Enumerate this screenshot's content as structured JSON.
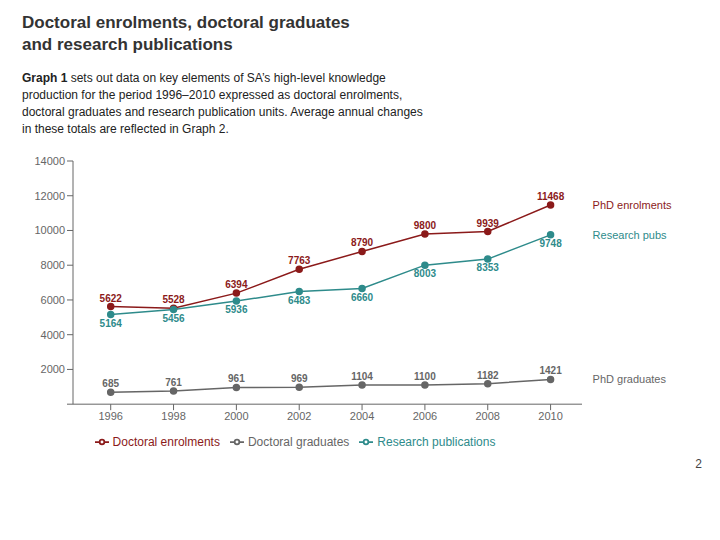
{
  "chart_data": {
    "type": "line",
    "title": "Doctoral enrolments, doctoral graduates\nand research publications",
    "x": [
      1996,
      1998,
      2000,
      2002,
      2004,
      2006,
      2008,
      2010
    ],
    "series": [
      {
        "name": "Doctoral enrolments",
        "color": "#8B1A1A",
        "values": [
          5622,
          5528,
          6394,
          7763,
          8790,
          9800,
          9939,
          11468
        ]
      },
      {
        "name": "Doctoral graduates",
        "color": "#666666",
        "values": [
          685,
          761,
          961,
          969,
          1104,
          1100,
          1182,
          1421
        ]
      },
      {
        "name": "Research publications",
        "color": "#2E8B8B",
        "values": [
          5164,
          5456,
          5936,
          6483,
          6660,
          8003,
          8353,
          9748
        ]
      }
    ],
    "xlim": [
      1994.8,
      2011.0
    ],
    "xticks": [
      1996,
      1998,
      2000,
      2002,
      2004,
      2006,
      2008,
      2010
    ],
    "ylim": [
      0,
      14000
    ],
    "yticks": [
      {
        "value": 0,
        "label": ""
      },
      2000,
      4000,
      6000,
      8000,
      10000,
      12000,
      14000
    ],
    "grid": false,
    "legend": "bottom",
    "data_labels": true,
    "annotations": [
      {
        "parts": [
          "Graph 1",
          " sets out data on key elements of SA’s high-level knowledge\nproduction for the period 1996–2010 expressed as doctoral enrolments,\ndoctoral graduates and research publication units. Average annual changes\nin these totals are reflected in Graph 2."
        ]
      },
      {
        "text": "PhD enrolments",
        "series": "Doctoral enrolments"
      },
      {
        "text": "Research pubs",
        "series": "Research publications"
      },
      {
        "text": "PhD graduates",
        "series": "Doctoral graduates"
      },
      {
        "text": "2"
      }
    ]
  }
}
